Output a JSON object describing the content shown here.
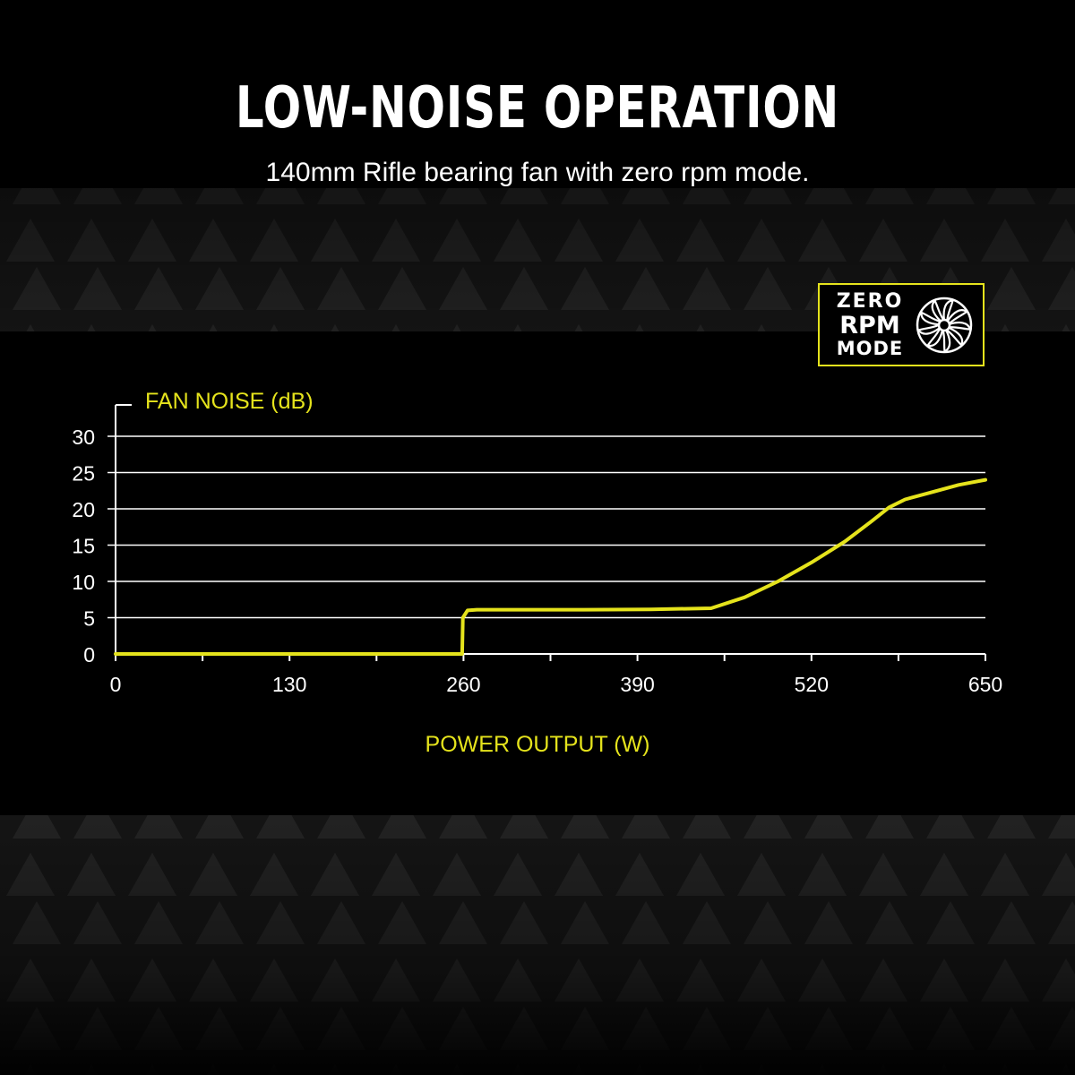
{
  "header": {
    "title": "LOW-NOISE OPERATION",
    "subtitle": "140mm Rifle bearing fan with zero rpm mode."
  },
  "badge": {
    "line1": "ZERO",
    "line2": "RPM",
    "line3": "MODE",
    "icon": "fan-icon"
  },
  "colors": {
    "background": "#000000",
    "accent": "#e5e31c",
    "text": "#ffffff",
    "grid": "#ffffff"
  },
  "chart_data": {
    "type": "line",
    "title": "",
    "ylabel": "FAN NOISE (dB)",
    "xlabel": "POWER OUTPUT (W)",
    "xlim": [
      0,
      650
    ],
    "ylim": [
      0,
      30
    ],
    "x_ticks": [
      0,
      130,
      260,
      390,
      520,
      650
    ],
    "y_ticks": [
      0,
      5,
      10,
      15,
      20,
      25,
      30
    ],
    "grid": true,
    "series": [
      {
        "values": [
          [
            0,
            0
          ],
          [
            259,
            0
          ],
          [
            259.5,
            5
          ],
          [
            263,
            6
          ],
          [
            270,
            6.1
          ],
          [
            350,
            6.1
          ],
          [
            400,
            6.15
          ],
          [
            445,
            6.3
          ],
          [
            470,
            7.8
          ],
          [
            495,
            10
          ],
          [
            520,
            12.6
          ],
          [
            545,
            15.5
          ],
          [
            565,
            18.3
          ],
          [
            578,
            20.2
          ],
          [
            590,
            21.3
          ],
          [
            610,
            22.3
          ],
          [
            630,
            23.3
          ],
          [
            650,
            24
          ]
        ]
      }
    ]
  }
}
